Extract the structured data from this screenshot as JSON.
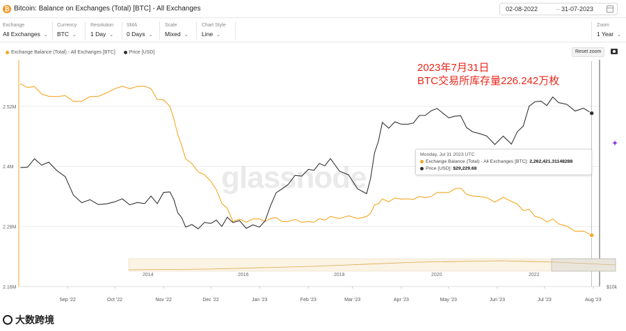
{
  "header": {
    "logo": "₿",
    "title": "Bitcoin: Balance on Exchanges (Total) [BTC] - All Exchanges",
    "date_from": "02-08-2022",
    "date_to": "31-07-2023",
    "date_sep": "→"
  },
  "controls": [
    {
      "label": "Exchange",
      "value": "All Exchanges"
    },
    {
      "label": "Currency",
      "value": "BTC"
    },
    {
      "label": "Resolution",
      "value": "1 Day"
    },
    {
      "label": "SMA",
      "value": "0 Days"
    },
    {
      "label": "Scale",
      "value": "Mixed"
    },
    {
      "label": "Chart Style",
      "value": "Line"
    }
  ],
  "zoom": {
    "label": "Zoom",
    "value": "1 Year"
  },
  "legend": [
    {
      "name": "Exchange Balance (Total) - All Exchanges [BTC]",
      "color": "#f5a623"
    },
    {
      "name": "Price [USD]",
      "color": "#333333"
    }
  ],
  "reset_label": "Reset zoom",
  "annotation": {
    "line1": "2023年7月31日",
    "line2": "BTC交易所库存量226.242万枚"
  },
  "watermark": "glassnode",
  "tooltip": {
    "date": "Monday, Jul 31 2023 UTC",
    "balance_label": "Exchange Balance (Total) - All Exchanges [BTC]:",
    "balance_value": "2,262,421.31148288",
    "price_label": "Price [USD]:",
    "price_value": "$29,229.68"
  },
  "brand": "大数跨境",
  "chart_data": {
    "type": "line",
    "x": [
      "2022-08-02",
      "2022-08-20",
      "2022-09-10",
      "2022-10-01",
      "2022-10-20",
      "2022-11-05",
      "2022-11-15",
      "2022-12-01",
      "2022-12-15",
      "2023-01-01",
      "2023-01-15",
      "2023-02-01",
      "2023-02-15",
      "2023-03-10",
      "2023-03-20",
      "2023-04-05",
      "2023-04-20",
      "2023-05-05",
      "2023-05-20",
      "2023-06-10",
      "2023-06-25",
      "2023-07-10",
      "2023-07-31"
    ],
    "series": [
      {
        "name": "Exchange Balance (Total) - All Exchanges [BTC]",
        "color": "#f5a623",
        "values": [
          2565000,
          2540000,
          2530000,
          2555000,
          2560000,
          2520000,
          2415000,
          2370000,
          2290000,
          2295000,
          2290000,
          2290000,
          2300000,
          2300000,
          2335000,
          2335000,
          2340000,
          2355000,
          2340000,
          2330000,
          2300000,
          2285000,
          2262421
        ]
      },
      {
        "name": "Price [USD]",
        "color": "#333333",
        "values": [
          23200,
          23800,
          19300,
          19400,
          19200,
          20500,
          16600,
          17000,
          17100,
          16600,
          20800,
          23000,
          24200,
          20300,
          28200,
          28000,
          29500,
          28900,
          27000,
          25800,
          30500,
          30400,
          29230
        ]
      }
    ],
    "y_ticks": [
      "2.52M",
      "2.4M",
      "2.28M",
      "2.16M"
    ],
    "y_range": [
      2160000,
      2610000
    ],
    "y2_label": "$10k",
    "y2_range": [
      10000,
      35000
    ],
    "x_ticks": [
      "Sep '22",
      "Oct '22",
      "Nov '22",
      "Dec '22",
      "Jan '23",
      "Feb '23",
      "Mar '23",
      "Apr '23",
      "May '23",
      "Jun '23",
      "Jul '23",
      "Aug '23"
    ],
    "navigator_ticks": [
      "2014",
      "2016",
      "2018",
      "2020",
      "2022"
    ],
    "grid": true,
    "legend_position": "top-left"
  }
}
